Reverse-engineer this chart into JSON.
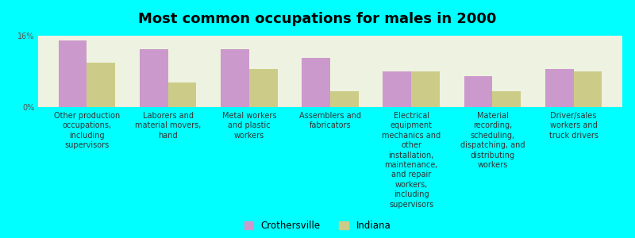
{
  "title": "Most common occupations for males in 2000",
  "background_color": "#00FFFF",
  "plot_bg_color": "#EEF2E0",
  "categories": [
    "Other production\noccupations,\nincluding\nsupervisors",
    "Laborers and\nmaterial movers,\nhand",
    "Metal workers\nand plastic\nworkers",
    "Assemblers and\nfabricators",
    "Electrical\nequipment\nmechanics and\nother\ninstallation,\nmaintenance,\nand repair\nworkers,\nincluding\nsupervisors",
    "Material\nrecording,\nscheduling,\ndispatching, and\ndistributing\nworkers",
    "Driver/sales\nworkers and\ntruck drivers"
  ],
  "crothersville_values": [
    15.0,
    13.0,
    13.0,
    11.0,
    8.0,
    7.0,
    8.5
  ],
  "indiana_values": [
    10.0,
    5.5,
    8.5,
    3.5,
    8.0,
    3.5,
    8.0
  ],
  "crothersville_color": "#CC99CC",
  "indiana_color": "#CCCC88",
  "ylim": [
    0,
    16
  ],
  "ytick_labels": [
    "0%",
    "16%"
  ],
  "bar_width": 0.35,
  "legend_labels": [
    "Crothersville",
    "Indiana"
  ],
  "title_fontsize": 13,
  "tick_fontsize": 7,
  "legend_fontsize": 8.5
}
